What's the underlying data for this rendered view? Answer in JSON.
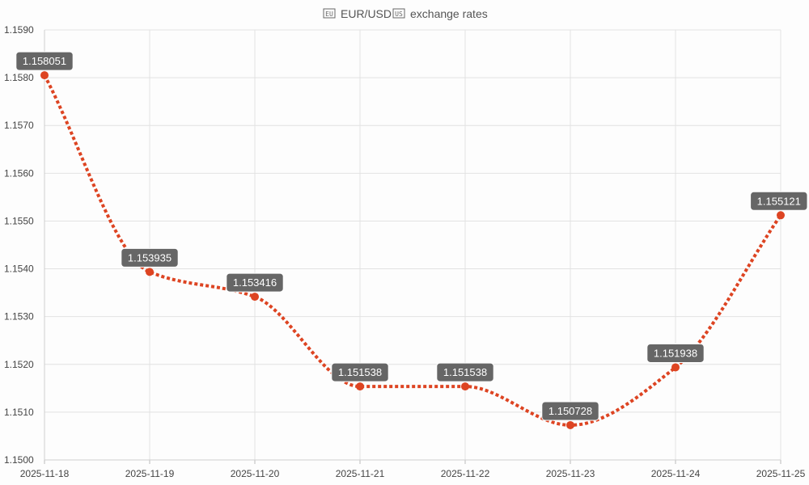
{
  "chart_data": {
    "type": "line",
    "title": {
      "base": "EUR/USD",
      "suffix": "exchange rates",
      "base_flag_icon": "eu-flag-icon",
      "quote_flag_icon": "us-flag-icon",
      "base_flag_text": "EU",
      "quote_flag_text": "US"
    },
    "xlabel": "",
    "ylabel": "",
    "x": [
      "2025-11-18",
      "2025-11-19",
      "2025-11-20",
      "2025-11-21",
      "2025-11-22",
      "2025-11-23",
      "2025-11-24",
      "2025-11-25"
    ],
    "series": [
      {
        "values": [
          1.158051,
          1.153935,
          1.153416,
          1.151538,
          1.151538,
          1.150728,
          1.151938,
          1.155121
        ],
        "labels": [
          "1.158051",
          "1.153935",
          "1.153416",
          "1.151538",
          "1.151538",
          "1.150728",
          "1.151938",
          "1.155121"
        ],
        "color": "#dd4422",
        "line_style": "dotted",
        "smooth": true
      }
    ],
    "yticks": [
      "1.1500",
      "1.1510",
      "1.1520",
      "1.1530",
      "1.1540",
      "1.1550",
      "1.1560",
      "1.1570",
      "1.1580",
      "1.1590"
    ],
    "ylim": [
      1.15,
      1.159
    ],
    "grid": true,
    "label_box_color": "#666666",
    "label_text_color": "#ffffff",
    "grid_color": "#e2e2e2"
  }
}
